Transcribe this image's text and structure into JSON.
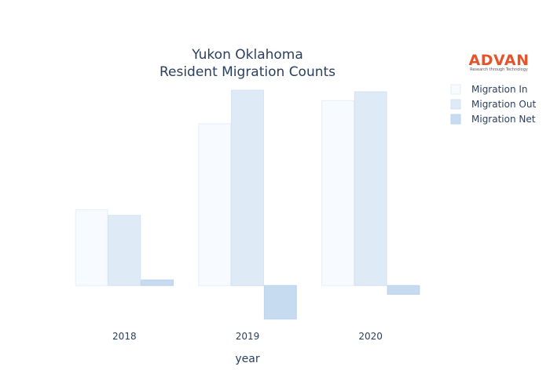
{
  "chart_data": {
    "type": "bar",
    "title": [
      "Yukon Oklahoma",
      "Resident Migration Counts"
    ],
    "xlabel": "year",
    "ylabel": "",
    "categories": [
      "2018",
      "2019",
      "2020"
    ],
    "series": [
      {
        "name": "Migration In",
        "values": [
          95,
          203,
          232
        ],
        "color": "#f7fbff",
        "stroke": "#e6eef8"
      },
      {
        "name": "Migration Out",
        "values": [
          88,
          245,
          243
        ],
        "color": "#deebf7",
        "stroke": "#d2e2f3"
      },
      {
        "name": "Migration Net",
        "values": [
          7,
          -42,
          -11
        ],
        "color": "#c6dbef",
        "stroke": "#bcd3eb"
      }
    ],
    "ylim": [
      -45,
      250
    ],
    "grid": false,
    "yticks_visible": false,
    "legend_position": "top-right"
  },
  "logo": {
    "name": "ADVAN",
    "tagline": "Research through Technology"
  }
}
